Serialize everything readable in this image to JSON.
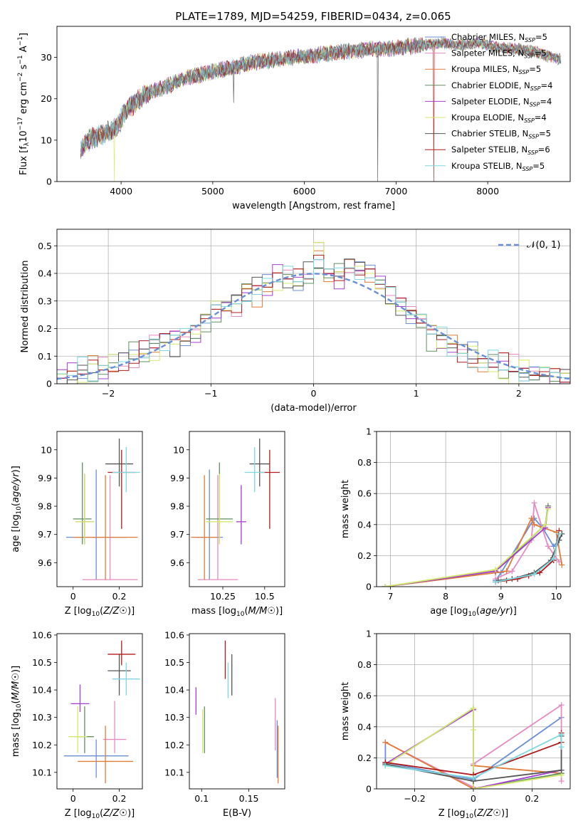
{
  "figure": {
    "title": "PLATE=1789, MJD=54259, FIBERID=0434, z=0.065"
  },
  "palette": {
    "Chabrier MILES": "#6b8fd6",
    "Salpeter MILES": "#e68ac3",
    "Kroupa MILES": "#e07b39",
    "Chabrier ELODIE": "#5f8f5f",
    "Salpeter ELODIE": "#a43fd1",
    "Kroupa ELODIE": "#d4e86c",
    "Chabrier STELIB": "#555555",
    "Salpeter STELIB": "#b01c1c",
    "Kroupa STELIB": "#7fd8e0"
  },
  "chart_data": [
    {
      "id": "spectrum",
      "type": "line",
      "title": "PLATE=1789, MJD=54259, FIBERID=0434, z=0.065",
      "xlabel": "wavelength [Angstrom, rest frame]",
      "ylabel": "Flux [f_λ 10^-17 erg cm^-2 s^-1 A^-1]",
      "xlim": [
        3300,
        8900
      ],
      "ylim": [
        0,
        37.5
      ],
      "xticks": [
        4000,
        5000,
        6000,
        7000,
        8000
      ],
      "yticks": [
        0,
        10,
        20,
        30
      ],
      "grid": false,
      "legend_placement": "right",
      "legend": [
        {
          "name": "Chabrier MILES",
          "nssp": "5"
        },
        {
          "name": "Salpeter MILES",
          "nssp": "5"
        },
        {
          "name": "Kroupa MILES",
          "nssp": "5"
        },
        {
          "name": "Chabrier ELODIE",
          "nssp": "4"
        },
        {
          "name": "Salpeter ELODIE",
          "nssp": "4"
        },
        {
          "name": "Kroupa ELODIE",
          "nssp": "4"
        },
        {
          "name": "Chabrier STELIB",
          "nssp": "5"
        },
        {
          "name": "Salpeter STELIB",
          "nssp": "6"
        },
        {
          "name": "Kroupa STELIB",
          "nssp": "5"
        }
      ],
      "continuum": {
        "x": [
          3560,
          3650,
          3750,
          3850,
          3950,
          4050,
          4150,
          4300,
          4500,
          4700,
          4900,
          5100,
          5300,
          5500,
          5700,
          5900,
          6100,
          6300,
          6500,
          6700,
          6900,
          7100,
          7300,
          7500,
          7700,
          7900,
          8100,
          8300,
          8500,
          8700,
          8800
        ],
        "y": [
          8,
          10,
          11,
          12,
          13,
          17,
          19,
          21.5,
          23,
          25,
          26,
          27,
          28,
          29,
          29.5,
          30,
          30.5,
          31,
          31.5,
          32,
          32,
          32.5,
          33,
          33.5,
          33,
          33.5,
          32.5,
          32,
          31.5,
          30,
          29.5
        ]
      },
      "dips": [
        {
          "x": 3925,
          "y": 0
        },
        {
          "x": 6800,
          "y": 0
        },
        {
          "x": 7410,
          "y": 0
        },
        {
          "x": 5230,
          "y": 19
        }
      ]
    },
    {
      "id": "residuals",
      "type": "line",
      "xlabel": "(data-model)/error",
      "ylabel": "Normed distribution",
      "xlim": [
        -2.5,
        2.5
      ],
      "ylim": [
        0,
        0.56
      ],
      "xticks": [
        -2,
        -1,
        0,
        1,
        2
      ],
      "yticks": [
        0.0,
        0.1,
        0.2,
        0.3,
        0.4,
        0.5
      ],
      "grid": true,
      "legend_placement": "top-right",
      "reference_label": "𝒩(0, 1)",
      "bin_width": 0.1,
      "bin_start": -2.5,
      "histogram": [
        0.02,
        0.03,
        0.035,
        0.04,
        0.05,
        0.06,
        0.08,
        0.09,
        0.11,
        0.13,
        0.15,
        0.16,
        0.17,
        0.18,
        0.22,
        0.27,
        0.28,
        0.29,
        0.33,
        0.34,
        0.35,
        0.37,
        0.38,
        0.37,
        0.38,
        0.45,
        0.4,
        0.39,
        0.42,
        0.41,
        0.4,
        0.36,
        0.32,
        0.28,
        0.25,
        0.22,
        0.18,
        0.16,
        0.13,
        0.11,
        0.09,
        0.075,
        0.06,
        0.05,
        0.045,
        0.04,
        0.03,
        0.028,
        0.025,
        0.022
      ]
    },
    {
      "id": "age-vs-Z",
      "type": "scatter",
      "xlabel": "Z [log10(Z/Z☉)]",
      "ylabel": "age  [log10(age/yr)]",
      "xlim": [
        -0.07,
        0.3
      ],
      "ylim": [
        9.515,
        10.065
      ],
      "xticks": [
        0.0,
        0.2
      ],
      "yticks": [
        9.6,
        9.7,
        9.8,
        9.9,
        10.0
      ],
      "points": [
        {
          "series": "Chabrier MILES",
          "x": 0.1,
          "y": 9.69,
          "xerr": 0.13,
          "yerr": [
            0.15,
            0.24
          ]
        },
        {
          "series": "Salpeter MILES",
          "x": 0.16,
          "y": 9.54,
          "xerr": 0.12,
          "yerr": [
            0.0,
            0.37
          ]
        },
        {
          "series": "Kroupa MILES",
          "x": 0.14,
          "y": 9.69,
          "xerr": 0.14,
          "yerr": [
            0.15,
            0.22
          ]
        },
        {
          "series": "Chabrier ELODIE",
          "x": 0.04,
          "y": 9.755,
          "xerr": 0.04,
          "yerr": [
            0.09,
            0.2
          ]
        },
        {
          "series": "Salpeter ELODIE",
          "x": 0.05,
          "y": 9.745,
          "xerr": 0.04,
          "yerr": [
            0.08,
            0.17
          ]
        },
        {
          "series": "Kroupa ELODIE",
          "x": 0.05,
          "y": 9.745,
          "xerr": 0.04,
          "yerr": [
            0.08,
            0.17
          ]
        },
        {
          "series": "Chabrier STELIB",
          "x": 0.2,
          "y": 9.95,
          "xerr": 0.06,
          "yerr": [
            0.08,
            0.09
          ]
        },
        {
          "series": "Salpeter STELIB",
          "x": 0.21,
          "y": 9.92,
          "xerr": 0.06,
          "yerr": [
            0.2,
            0.08
          ]
        },
        {
          "series": "Kroupa STELIB",
          "x": 0.23,
          "y": 9.92,
          "xerr": 0.06,
          "yerr": [
            0.07,
            0.09
          ]
        }
      ]
    },
    {
      "id": "age-vs-mass",
      "type": "scatter",
      "xlabel": "mass [log10(M/M☉)]",
      "ylabel": "",
      "xlim": [
        10.05,
        10.62
      ],
      "ylim": [
        9.515,
        10.065
      ],
      "xticks": [
        10.25,
        10.5
      ],
      "yticks": [
        9.6,
        9.7,
        9.8,
        9.9,
        10.0
      ],
      "points": [
        {
          "series": "Chabrier MILES",
          "x": 10.17,
          "y": 9.69,
          "xerr": 0.08,
          "yerr": [
            0.15,
            0.24
          ]
        },
        {
          "series": "Salpeter MILES",
          "x": 10.22,
          "y": 9.54,
          "xerr": 0.12,
          "yerr": [
            0.0,
            0.37
          ]
        },
        {
          "series": "Kroupa MILES",
          "x": 10.14,
          "y": 9.69,
          "xerr": 0.08,
          "yerr": [
            0.15,
            0.22
          ]
        },
        {
          "series": "Chabrier ELODIE",
          "x": 10.23,
          "y": 9.755,
          "xerr": 0.08,
          "yerr": [
            0.09,
            0.2
          ]
        },
        {
          "series": "Salpeter ELODIE",
          "x": 10.36,
          "y": 9.745,
          "xerr": 0.03,
          "yerr": [
            0.08,
            0.13
          ]
        },
        {
          "series": "Kroupa ELODIE",
          "x": 10.23,
          "y": 9.745,
          "xerr": 0.08,
          "yerr": [
            0.08,
            0.17
          ]
        },
        {
          "series": "Chabrier STELIB",
          "x": 10.47,
          "y": 9.95,
          "xerr": 0.06,
          "yerr": [
            0.08,
            0.09
          ]
        },
        {
          "series": "Salpeter STELIB",
          "x": 10.53,
          "y": 9.92,
          "xerr": 0.06,
          "yerr": [
            0.2,
            0.08
          ]
        },
        {
          "series": "Kroupa STELIB",
          "x": 10.44,
          "y": 9.92,
          "xerr": 0.06,
          "yerr": [
            0.07,
            0.09
          ]
        }
      ]
    },
    {
      "id": "weights-vs-age",
      "type": "line",
      "xlabel": "age  [log10(age/yr)]",
      "ylabel": "mass weight",
      "xlim": [
        6.75,
        10.25
      ],
      "ylim": [
        0,
        1
      ],
      "xticks": [
        7,
        8,
        9,
        10
      ],
      "yticks": [
        0.0,
        0.2,
        0.4,
        0.6,
        0.8,
        1.0
      ],
      "grid": true,
      "series": [
        {
          "name": "Chabrier MILES",
          "x": [
            8.9,
            9.0,
            9.6,
            9.75,
            9.95,
            10.05
          ],
          "y": [
            0.04,
            0.09,
            0.44,
            0.38,
            0.26,
            0.3
          ]
        },
        {
          "name": "Salpeter MILES",
          "x": [
            8.9,
            9.2,
            9.55,
            9.6,
            9.85,
            10.05
          ],
          "y": [
            0.05,
            0.1,
            0.3,
            0.54,
            0.26,
            0.16
          ]
        },
        {
          "name": "Kroupa MILES",
          "x": [
            6.9,
            8.9,
            9.1,
            9.55,
            9.6,
            10.0,
            10.1
          ],
          "y": [
            0.0,
            0.09,
            0.1,
            0.44,
            0.4,
            0.35,
            0.14
          ]
        },
        {
          "name": "Chabrier ELODIE",
          "x": [
            6.9,
            8.9,
            9.8,
            9.85
          ],
          "y": [
            0.0,
            0.1,
            0.4,
            0.52
          ]
        },
        {
          "name": "Salpeter ELODIE",
          "x": [
            6.9,
            8.9,
            9.8,
            9.85
          ],
          "y": [
            0.0,
            0.1,
            0.38,
            0.51
          ]
        },
        {
          "name": "Kroupa ELODIE",
          "x": [
            6.9,
            8.9,
            9.8,
            9.85
          ],
          "y": [
            0.0,
            0.11,
            0.4,
            0.5
          ]
        },
        {
          "name": "Chabrier STELIB",
          "x": [
            8.95,
            9.2,
            9.6,
            9.9,
            10.05,
            10.1
          ],
          "y": [
            0.04,
            0.05,
            0.09,
            0.17,
            0.3,
            0.34
          ]
        },
        {
          "name": "Salpeter STELIB",
          "x": [
            8.9,
            9.1,
            9.3,
            9.5,
            9.7,
            9.95,
            10.05
          ],
          "y": [
            0.03,
            0.04,
            0.05,
            0.07,
            0.09,
            0.17,
            0.36
          ]
        },
        {
          "name": "Kroupa STELIB",
          "x": [
            8.9,
            9.6,
            9.95,
            10.05
          ],
          "y": [
            0.03,
            0.08,
            0.18,
            0.34
          ]
        }
      ]
    },
    {
      "id": "mass-vs-Z",
      "type": "scatter",
      "xlabel": "Z [log10(Z/Z☉)]",
      "ylabel": "mass [log10(M/M☉)]",
      "xlim": [
        -0.07,
        0.3
      ],
      "ylim": [
        10.04,
        10.605
      ],
      "xticks": [
        0.0,
        0.2
      ],
      "yticks": [
        10.1,
        10.2,
        10.3,
        10.4,
        10.5,
        10.6
      ],
      "points": [
        {
          "series": "Chabrier MILES",
          "x": 0.1,
          "y": 10.16,
          "xerr": 0.14,
          "yerr": [
            0.08,
            0.06
          ]
        },
        {
          "series": "Salpeter MILES",
          "x": 0.18,
          "y": 10.22,
          "xerr": 0.05,
          "yerr": [
            0.05,
            0.14
          ]
        },
        {
          "series": "Kroupa MILES",
          "x": 0.14,
          "y": 10.14,
          "xerr": 0.12,
          "yerr": [
            0.08,
            0.13
          ]
        },
        {
          "series": "Chabrier ELODIE",
          "x": 0.05,
          "y": 10.23,
          "xerr": 0.04,
          "yerr": [
            0.06,
            0.11
          ]
        },
        {
          "series": "Salpeter ELODIE",
          "x": 0.03,
          "y": 10.35,
          "xerr": 0.04,
          "yerr": [
            0.03,
            0.07
          ]
        },
        {
          "series": "Kroupa ELODIE",
          "x": 0.02,
          "y": 10.23,
          "xerr": 0.04,
          "yerr": [
            0.06,
            0.11
          ]
        },
        {
          "series": "Chabrier STELIB",
          "x": 0.2,
          "y": 10.47,
          "xerr": 0.05,
          "yerr": [
            0.09,
            0.06
          ]
        },
        {
          "series": "Salpeter STELIB",
          "x": 0.21,
          "y": 10.53,
          "xerr": 0.06,
          "yerr": [
            0.04,
            0.05
          ]
        },
        {
          "series": "Kroupa STELIB",
          "x": 0.23,
          "y": 10.44,
          "xerr": 0.06,
          "yerr": [
            0.06,
            0.06
          ]
        }
      ]
    },
    {
      "id": "mass-vs-EBV",
      "type": "scatter",
      "xlabel": "E(B-V)",
      "ylabel": "",
      "xlim": [
        0.087,
        0.188
      ],
      "ylim": [
        10.04,
        10.605
      ],
      "xticks": [
        0.1,
        0.15
      ],
      "yticks": [
        10.1,
        10.2,
        10.3,
        10.4,
        10.5,
        10.6
      ],
      "points": [
        {
          "series": "Chabrier MILES",
          "x": 0.18,
          "y": 10.16,
          "yerr": [
            0.08,
            0.13
          ]
        },
        {
          "series": "Salpeter MILES",
          "x": 0.178,
          "y": 10.26,
          "yerr": [
            0.08,
            0.11
          ]
        },
        {
          "series": "Kroupa MILES",
          "x": 0.181,
          "y": 10.14,
          "yerr": [
            0.08,
            0.13
          ]
        },
        {
          "series": "Chabrier ELODIE",
          "x": 0.103,
          "y": 10.25,
          "yerr": [
            0.08,
            0.09
          ]
        },
        {
          "series": "Salpeter ELODIE",
          "x": 0.094,
          "y": 10.35,
          "yerr": [
            0.04,
            0.06
          ]
        },
        {
          "series": "Kroupa ELODIE",
          "x": 0.101,
          "y": 10.23,
          "yerr": [
            0.06,
            0.1
          ]
        },
        {
          "series": "Chabrier STELIB",
          "x": 0.132,
          "y": 10.45,
          "yerr": [
            0.07,
            0.08
          ]
        },
        {
          "series": "Salpeter STELIB",
          "x": 0.125,
          "y": 10.51,
          "yerr": [
            0.07,
            0.07
          ]
        },
        {
          "series": "Kroupa STELIB",
          "x": 0.128,
          "y": 10.43,
          "yerr": [
            0.06,
            0.07
          ]
        }
      ]
    },
    {
      "id": "weights-vs-Z",
      "type": "line",
      "xlabel": "Z [log10(Z/Z☉)]",
      "ylabel": "mass weight",
      "xlim": [
        -0.33,
        0.33
      ],
      "ylim": [
        0,
        1
      ],
      "xticks": [
        -0.2,
        0.0,
        0.2
      ],
      "yticks": [
        0.0,
        0.2,
        0.4,
        0.6,
        0.8,
        1.0
      ],
      "grid": true,
      "series": [
        {
          "name": "Chabrier MILES",
          "x": [
            -0.3,
            -0.3,
            0.0,
            0.3
          ],
          "y": [
            0.3,
            0.17,
            0.06,
            0.46
          ]
        },
        {
          "name": "Salpeter MILES",
          "x": [
            -0.3,
            0.0,
            0.0,
            0.3,
            0.3
          ],
          "y": [
            0.3,
            0.01,
            0.16,
            0.54,
            0.05
          ]
        },
        {
          "name": "Kroupa MILES",
          "x": [
            -0.3,
            0.0,
            0.0,
            0.3
          ],
          "y": [
            0.3,
            0.0,
            0.15,
            0.1
          ]
        },
        {
          "name": "Chabrier ELODIE",
          "x": [
            -0.3,
            0.0,
            0.0,
            0.3
          ],
          "y": [
            0.15,
            0.52,
            0.0,
            0.1
          ]
        },
        {
          "name": "Salpeter ELODIE",
          "x": [
            -0.3,
            0.0,
            0.0,
            0.3
          ],
          "y": [
            0.16,
            0.51,
            0.0,
            0.12
          ]
        },
        {
          "name": "Kroupa ELODIE",
          "x": [
            -0.3,
            0.0,
            0.0,
            0.0,
            0.3
          ],
          "y": [
            0.15,
            0.52,
            0.38,
            0.0,
            0.09
          ]
        },
        {
          "name": "Chabrier STELIB",
          "x": [
            -0.3,
            0.0,
            0.3,
            0.3
          ],
          "y": [
            0.16,
            0.05,
            0.12,
            0.34
          ]
        },
        {
          "name": "Salpeter STELIB",
          "x": [
            -0.3,
            0.0,
            0.3,
            0.3
          ],
          "y": [
            0.17,
            0.09,
            0.3,
            0.36
          ]
        },
        {
          "name": "Kroupa STELIB",
          "x": [
            -0.3,
            0.0,
            0.3,
            0.3
          ],
          "y": [
            0.15,
            0.07,
            0.35,
            0.27
          ]
        }
      ]
    }
  ]
}
